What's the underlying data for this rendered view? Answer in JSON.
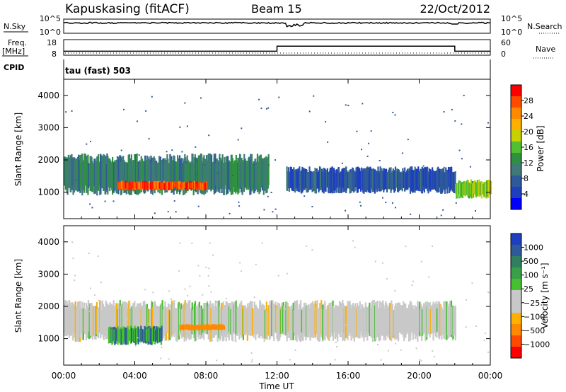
{
  "header": {
    "station": "Kapuskasing (fitACF)",
    "beam": "Beam 15",
    "date": "22/Oct/2012"
  },
  "params": {
    "nsky_label": "N.Sky",
    "nsky_ticks": [
      "10^5",
      "10^0"
    ],
    "nsearch_label": "N.Search",
    "nsearch_ticks": [
      "10^5",
      "10^0"
    ],
    "freq_label": "Freq.",
    "freq_unit": "[MHz]",
    "freq_ticks": [
      "18",
      "8"
    ],
    "nave_label": "Nave",
    "nave_ticks": [
      "60",
      "0"
    ],
    "cpid_label": "CPID",
    "cpid_value": "tau (fast) 503"
  },
  "power_panel": {
    "ylabel": "Slant Range [km]",
    "colorbar_label": "Power [dB]",
    "colorbar_ticks": [
      "28",
      "24",
      "20",
      "16",
      "12",
      "8",
      "4"
    ],
    "colorbar_colors": [
      "#ff0000",
      "#ff4a00",
      "#ff8a00",
      "#ffb000",
      "#c8d000",
      "#50c030",
      "#2f9040",
      "#3f7a78",
      "#2e5a9a",
      "#1f3fc0",
      "#0000ff"
    ]
  },
  "velocity_panel": {
    "ylabel": "Slant Range [km]",
    "colorbar_label": "Velocity [m s⁻¹]",
    "colorbar_ticks": [
      "1000",
      "500",
      "100",
      "25",
      "−25",
      "−100",
      "−500",
      "−1000"
    ],
    "colorbar_colors": [
      "#1f3fc0",
      "#2e5a9a",
      "#2f7f60",
      "#3aa048",
      "#44c030",
      "#c8c8c8",
      "#c8c8c8",
      "#ffb000",
      "#ff8a00",
      "#ff4a00",
      "#ff0000"
    ]
  },
  "xaxis": {
    "label": "Time UT",
    "ticks": [
      "00:00",
      "04:00",
      "08:00",
      "12:00",
      "16:00",
      "20:00",
      "00:00"
    ]
  },
  "chart_data": [
    {
      "type": "heatmap",
      "title": "Power",
      "ylabel": "Slant Range [km]",
      "xlabel": "Time UT",
      "x_range_hours": [
        0,
        24
      ],
      "ylim": [
        180,
        4500
      ],
      "y_ticks": [
        1000,
        2000,
        3000,
        4000
      ],
      "colorbar": {
        "label": "Power [dB]",
        "range": [
          0,
          30
        ],
        "ticks": [
          4,
          8,
          12,
          16,
          20,
          24,
          28
        ]
      },
      "features": [
        {
          "t_start": 0.0,
          "t_end": 11.5,
          "range_low": 900,
          "range_high": 2200,
          "power_db": 10
        },
        {
          "t_start": 3.0,
          "t_end": 8.0,
          "range_low": 1050,
          "range_high": 1350,
          "power_db": 26
        },
        {
          "t_start": 12.5,
          "t_end": 22.0,
          "range_low": 950,
          "range_high": 1800,
          "power_db": 6
        },
        {
          "t_start": 22.0,
          "t_end": 24.0,
          "range_low": 800,
          "range_high": 1400,
          "power_db": 16
        }
      ]
    },
    {
      "type": "heatmap",
      "title": "Velocity",
      "ylabel": "Slant Range [km]",
      "xlabel": "Time UT",
      "x_range_hours": [
        0,
        24
      ],
      "ylim": [
        180,
        4500
      ],
      "y_ticks": [
        1000,
        2000,
        3000,
        4000
      ],
      "colorbar": {
        "label": "Velocity [m s⁻¹]",
        "range": [
          -1000,
          1000
        ],
        "ticks": [
          1000,
          500,
          100,
          25,
          -25,
          -100,
          -500,
          -1000
        ]
      },
      "features": [
        {
          "t_start": 0.0,
          "t_end": 22.0,
          "range_low": 900,
          "range_high": 2200,
          "velocity": 0
        },
        {
          "t_start": 2.5,
          "t_end": 5.5,
          "range_low": 800,
          "range_high": 1400,
          "velocity": 100
        },
        {
          "t_start": 6.5,
          "t_end": 9.0,
          "range_low": 1250,
          "range_high": 1450,
          "velocity": -200
        }
      ]
    },
    {
      "type": "line",
      "title": "Freq.",
      "series": [
        {
          "name": "Freq.",
          "x": [
            0,
            12.0,
            12.0,
            22.0,
            22.0,
            24
          ],
          "values": [
            10,
            10,
            14,
            14,
            10,
            10
          ]
        }
      ],
      "ylim": [
        8,
        18
      ]
    }
  ]
}
